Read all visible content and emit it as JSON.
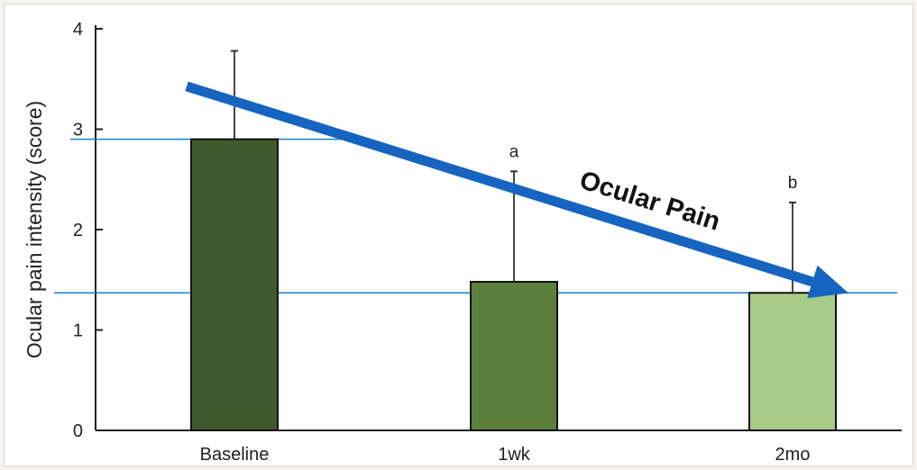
{
  "chart_data": {
    "type": "bar",
    "categories": [
      "Baseline",
      "1wk",
      "2mo"
    ],
    "values": [
      2.9,
      1.48,
      1.37
    ],
    "error_upper": [
      3.78,
      2.58,
      2.27
    ],
    "bar_colors": [
      "#3e5a2c",
      "#5c7f3c",
      "#a6cc88"
    ],
    "significance": [
      "",
      "a",
      "b"
    ],
    "ylabel": "Ocular pain intensity (score)",
    "ylim": [
      0,
      4
    ],
    "yticks": [
      "0",
      "1",
      "2",
      "3",
      "4"
    ],
    "reference_lines": [
      2.9,
      1.37
    ],
    "reference_line_color": "#1a7fd0",
    "trend_annotation": {
      "label": "Ocular Pain",
      "color": "#1565c0",
      "from": {
        "category": "Baseline",
        "value": 3.4
      },
      "to": {
        "category": "2mo",
        "value": 1.35
      }
    },
    "grid": false,
    "legend": "none"
  }
}
